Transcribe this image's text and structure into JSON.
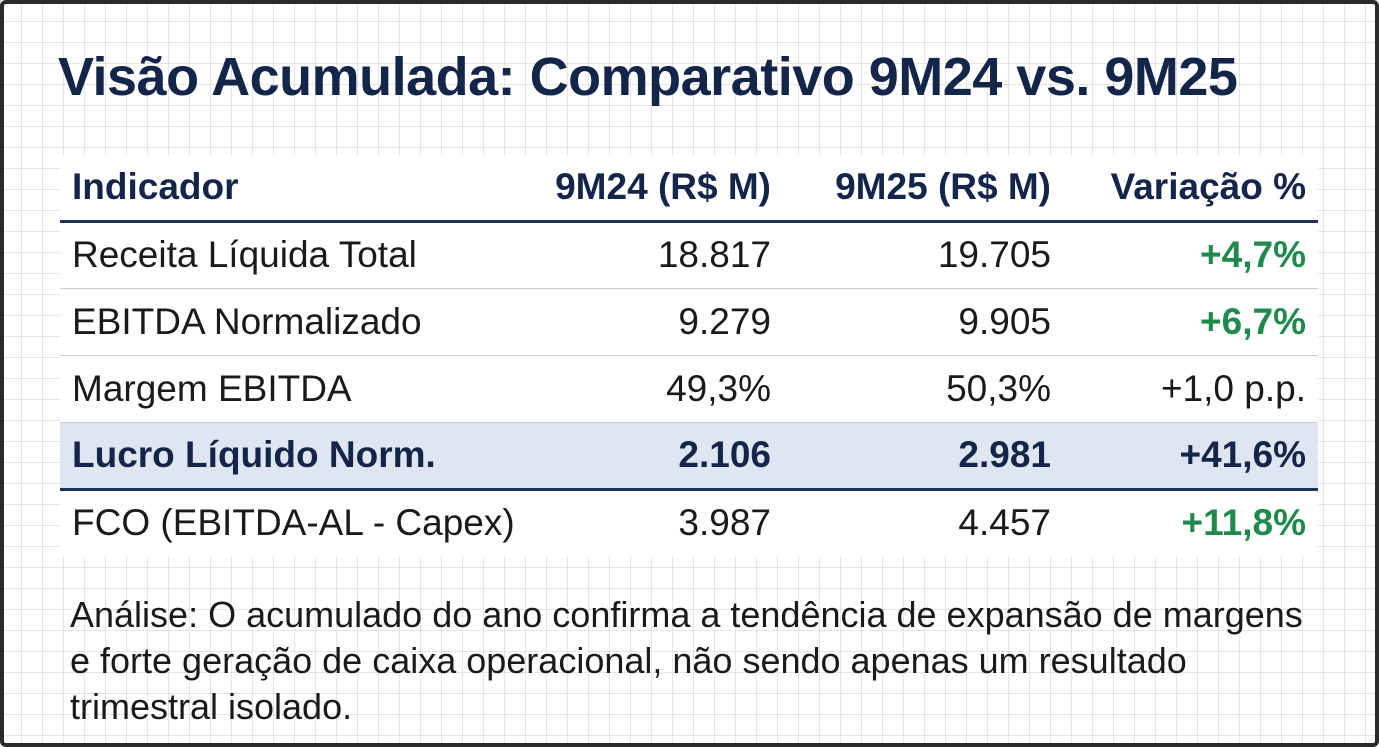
{
  "title": "Visão Acumulada: Comparativo 9M24 vs. 9M25",
  "table": {
    "headers": [
      "Indicador",
      "9M24 (R$ M)",
      "9M25 (R$ M)",
      "Variação %"
    ],
    "rows": [
      {
        "indicator": "Receita Líquida Total",
        "v9m24": "18.817",
        "v9m25": "19.705",
        "variation": "+4,7%"
      },
      {
        "indicator": "EBITDA Normalizado",
        "v9m24": "9.279",
        "v9m25": "9.905",
        "variation": "+6,7%"
      },
      {
        "indicator": "Margem EBITDA",
        "v9m24": "49,3%",
        "v9m25": "50,3%",
        "variation": "+1,0 p.p."
      },
      {
        "indicator": "Lucro Líquido Norm.",
        "v9m24": "2.106",
        "v9m25": "2.981",
        "variation": "+41,6%"
      },
      {
        "indicator": "FCO (EBITDA-AL - Capex)",
        "v9m24": "3.987",
        "v9m25": "4.457",
        "variation": "+11,8%"
      }
    ]
  },
  "analysis": "Análise: O acumulado do ano confirma a tendência de expansão de margens e forte geração de caixa operacional, não sendo apenas um resultado trimestral isolado.",
  "colors": {
    "title": "#13264a",
    "positive": "#1f8a4c",
    "highlight_row": "#dfe6f1",
    "rule": "#1f3358"
  }
}
